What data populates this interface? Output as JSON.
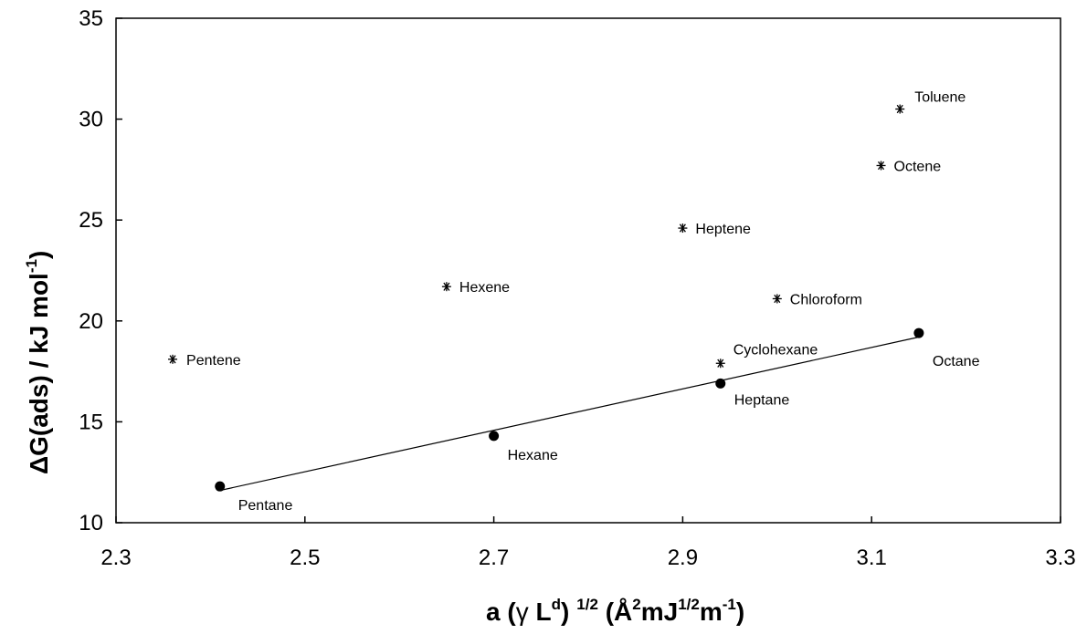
{
  "chart_data": {
    "type": "scatter",
    "title": "",
    "xlabel": {
      "a": "a (",
      "gamma": "γ",
      "L": " L",
      "d": "d",
      "close": ")",
      "half": "1/2",
      "unit_open": " (Å",
      "two": "2",
      "mJ": "mJ",
      "m": "m",
      "neg1": "-1",
      "unit_close": ")"
    },
    "ylabel": {
      "main": "ΔG(ads)  / kJ mol",
      "sup": "-1",
      "close": ")"
    },
    "xlim": [
      2.3,
      3.3
    ],
    "ylim": [
      10,
      35
    ],
    "xticks": [
      "2.3",
      "2.5",
      "2.7",
      "2.9",
      "3.1",
      "3.3"
    ],
    "yticks": [
      "10",
      "15",
      "20",
      "25",
      "30",
      "35"
    ],
    "grid": false,
    "series": [
      {
        "marker": "circle",
        "color": "#000000",
        "trendline": true,
        "points": [
          {
            "x": 2.41,
            "y": 11.8,
            "label": "Pentane"
          },
          {
            "x": 2.7,
            "y": 14.3,
            "label": "Hexane"
          },
          {
            "x": 2.94,
            "y": 16.9,
            "label": "Heptane"
          },
          {
            "x": 3.15,
            "y": 19.4,
            "label": "Octane"
          }
        ]
      },
      {
        "marker": "asterisk",
        "color": "#000000",
        "points": [
          {
            "x": 2.36,
            "y": 18.1,
            "label": "Pentene"
          },
          {
            "x": 2.65,
            "y": 21.7,
            "label": "Hexene"
          },
          {
            "x": 2.9,
            "y": 24.6,
            "label": "Heptene"
          },
          {
            "x": 3.11,
            "y": 27.7,
            "label": "Octene"
          },
          {
            "x": 3.13,
            "y": 30.5,
            "label": "Toluene"
          },
          {
            "x": 3.0,
            "y": 21.1,
            "label": "Chloroform"
          },
          {
            "x": 2.94,
            "y": 17.9,
            "label": "Cyclohexane"
          }
        ]
      }
    ],
    "trendline": {
      "x": [
        2.41,
        3.15
      ],
      "y": [
        11.6,
        19.2
      ]
    }
  }
}
